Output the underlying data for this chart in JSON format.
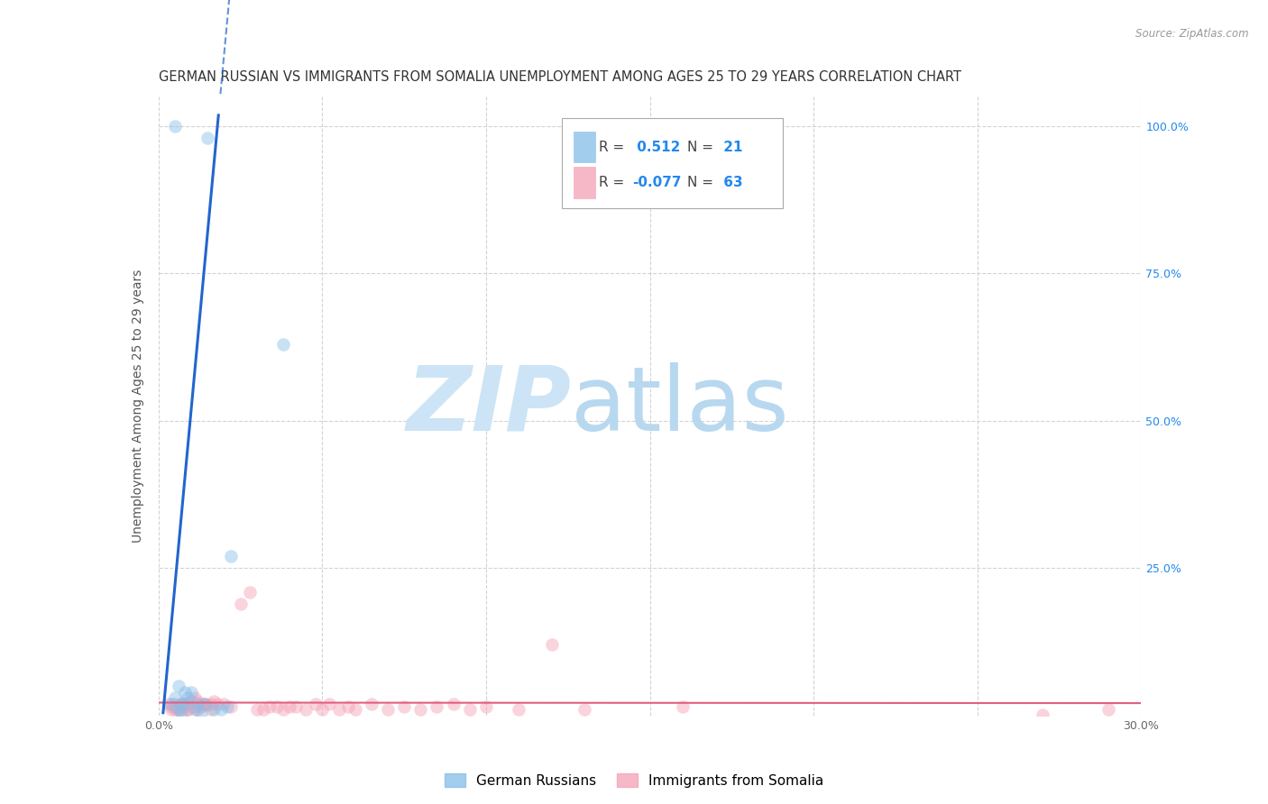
{
  "title": "GERMAN RUSSIAN VS IMMIGRANTS FROM SOMALIA UNEMPLOYMENT AMONG AGES 25 TO 29 YEARS CORRELATION CHART",
  "source": "Source: ZipAtlas.com",
  "ylabel": "Unemployment Among Ages 25 to 29 years",
  "xlim": [
    0.0,
    0.3
  ],
  "ylim": [
    0.0,
    1.05
  ],
  "xticks": [
    0.0,
    0.05,
    0.1,
    0.15,
    0.2,
    0.25,
    0.3
  ],
  "xtick_labels": [
    "0.0%",
    "",
    "",
    "",
    "",
    "",
    "30.0%"
  ],
  "ytick_positions": [
    0.0,
    0.25,
    0.5,
    0.75,
    1.0
  ],
  "ytick_labels": [
    "",
    "25.0%",
    "50.0%",
    "75.0%",
    "100.0%"
  ],
  "background_color": "#ffffff",
  "grid_color": "#c8c8c8",
  "watermark_zip": "ZIP",
  "watermark_atlas": "atlas",
  "watermark_color": "#cce4f5",
  "blue_scatter_color": "#85bde8",
  "pink_scatter_color": "#f4a0b5",
  "blue_line_color": "#2266cc",
  "pink_line_color": "#e06080",
  "blue_scatter_x": [
    0.005,
    0.015,
    0.038,
    0.022,
    0.006,
    0.008,
    0.009,
    0.01,
    0.012,
    0.014,
    0.017,
    0.019,
    0.021,
    0.005,
    0.007,
    0.008,
    0.011,
    0.013,
    0.004,
    0.006,
    0.007
  ],
  "blue_scatter_y": [
    1.0,
    0.98,
    0.63,
    0.27,
    0.05,
    0.04,
    0.03,
    0.04,
    0.02,
    0.02,
    0.01,
    0.01,
    0.015,
    0.03,
    0.02,
    0.02,
    0.01,
    0.005,
    0.02,
    0.01,
    0.005
  ],
  "pink_scatter_x": [
    0.003,
    0.004,
    0.005,
    0.006,
    0.007,
    0.008,
    0.009,
    0.01,
    0.011,
    0.012,
    0.013,
    0.014,
    0.015,
    0.016,
    0.017,
    0.018,
    0.02,
    0.022,
    0.025,
    0.028,
    0.03,
    0.032,
    0.034,
    0.036,
    0.038,
    0.04,
    0.042,
    0.045,
    0.048,
    0.05,
    0.052,
    0.055,
    0.058,
    0.06,
    0.065,
    0.07,
    0.075,
    0.08,
    0.085,
    0.09,
    0.095,
    0.1,
    0.11,
    0.12,
    0.13,
    0.16,
    0.004,
    0.005,
    0.006,
    0.007,
    0.008,
    0.009,
    0.01,
    0.012,
    0.014,
    0.016,
    0.27,
    0.29,
    0.005,
    0.007,
    0.009,
    0.011,
    0.013
  ],
  "pink_scatter_y": [
    0.02,
    0.015,
    0.01,
    0.01,
    0.02,
    0.015,
    0.02,
    0.025,
    0.03,
    0.01,
    0.015,
    0.02,
    0.018,
    0.02,
    0.025,
    0.02,
    0.02,
    0.015,
    0.19,
    0.21,
    0.01,
    0.01,
    0.015,
    0.015,
    0.01,
    0.015,
    0.015,
    0.01,
    0.02,
    0.01,
    0.02,
    0.01,
    0.015,
    0.01,
    0.02,
    0.01,
    0.015,
    0.01,
    0.015,
    0.02,
    0.01,
    0.015,
    0.01,
    0.12,
    0.01,
    0.015,
    0.01,
    0.02,
    0.015,
    0.01,
    0.02,
    0.01,
    0.015,
    0.025,
    0.02,
    0.01,
    0.002,
    0.01,
    0.015,
    0.02,
    0.01,
    0.015,
    0.02
  ],
  "blue_R": 0.512,
  "blue_N": 21,
  "pink_R": -0.077,
  "pink_N": 63,
  "scatter_size": 110,
  "scatter_alpha": 0.45,
  "title_fontsize": 10.5,
  "axis_label_fontsize": 10,
  "tick_fontsize": 9,
  "right_ytick_color": "#2288ee"
}
